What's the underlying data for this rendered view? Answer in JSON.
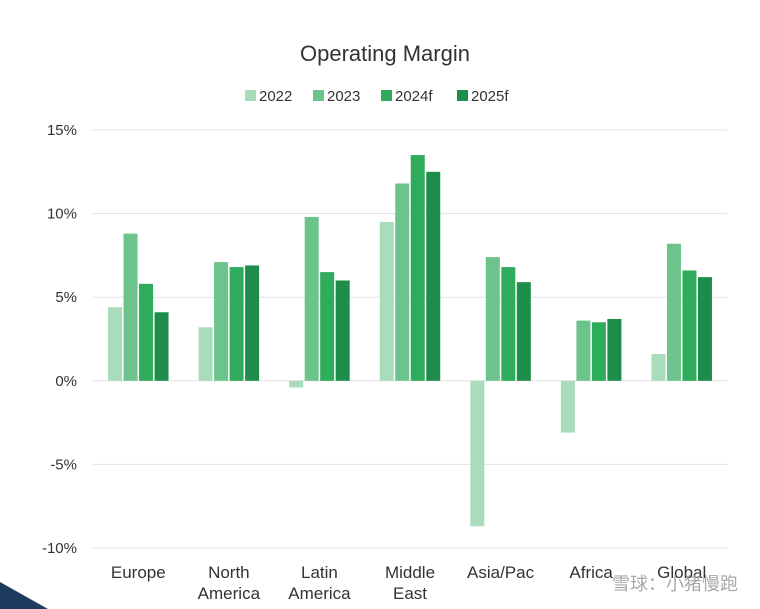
{
  "chart_data": {
    "type": "bar",
    "title": "Operating Margin",
    "categories": [
      [
        "Europe"
      ],
      [
        "North",
        "America"
      ],
      [
        "Latin",
        "America"
      ],
      [
        "Middle",
        "East"
      ],
      [
        "Asia/Pac"
      ],
      [
        "Africa"
      ],
      [
        "Global"
      ]
    ],
    "series": [
      {
        "name": "2022",
        "color": "#a8dcbb",
        "values": [
          4.4,
          3.2,
          -0.4,
          9.5,
          -8.7,
          -3.1,
          1.6
        ]
      },
      {
        "name": "2023",
        "color": "#6cc38b",
        "values": [
          8.8,
          7.1,
          9.8,
          11.8,
          7.4,
          3.6,
          8.2
        ]
      },
      {
        "name": "2024f",
        "color": "#2fab5c",
        "values": [
          5.8,
          6.8,
          6.5,
          13.5,
          6.8,
          3.5,
          6.6
        ]
      },
      {
        "name": "2025f",
        "color": "#1e8c4a",
        "values": [
          4.1,
          6.9,
          6.0,
          12.5,
          5.9,
          3.7,
          6.2
        ]
      }
    ],
    "yticks": [
      15,
      10,
      5,
      0,
      -5,
      -10
    ],
    "tick_suffix": "%",
    "ylim": [
      -10,
      15
    ],
    "grid": true,
    "legend_position": "top-center"
  },
  "watermark": "雪球：小猪慢跑"
}
